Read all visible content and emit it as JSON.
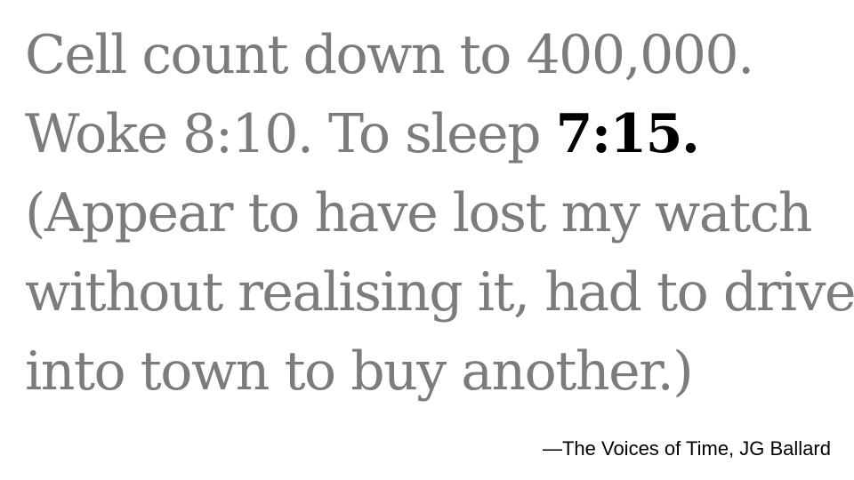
{
  "quote": {
    "line1": "Cell count down to 400,000.",
    "line2_prefix": "Woke 8:10. To sleep ",
    "line2_emphasis": "7:15.",
    "line3": "(Appear to have lost my watch",
    "line4": "without realising it, had to drive",
    "line5": "into town to buy another.)"
  },
  "attribution": "—The Voices of Time, JG Ballard",
  "colors": {
    "text_muted": "#7c7c7c",
    "text_emphasis": "#000000",
    "background": "#ffffff"
  }
}
